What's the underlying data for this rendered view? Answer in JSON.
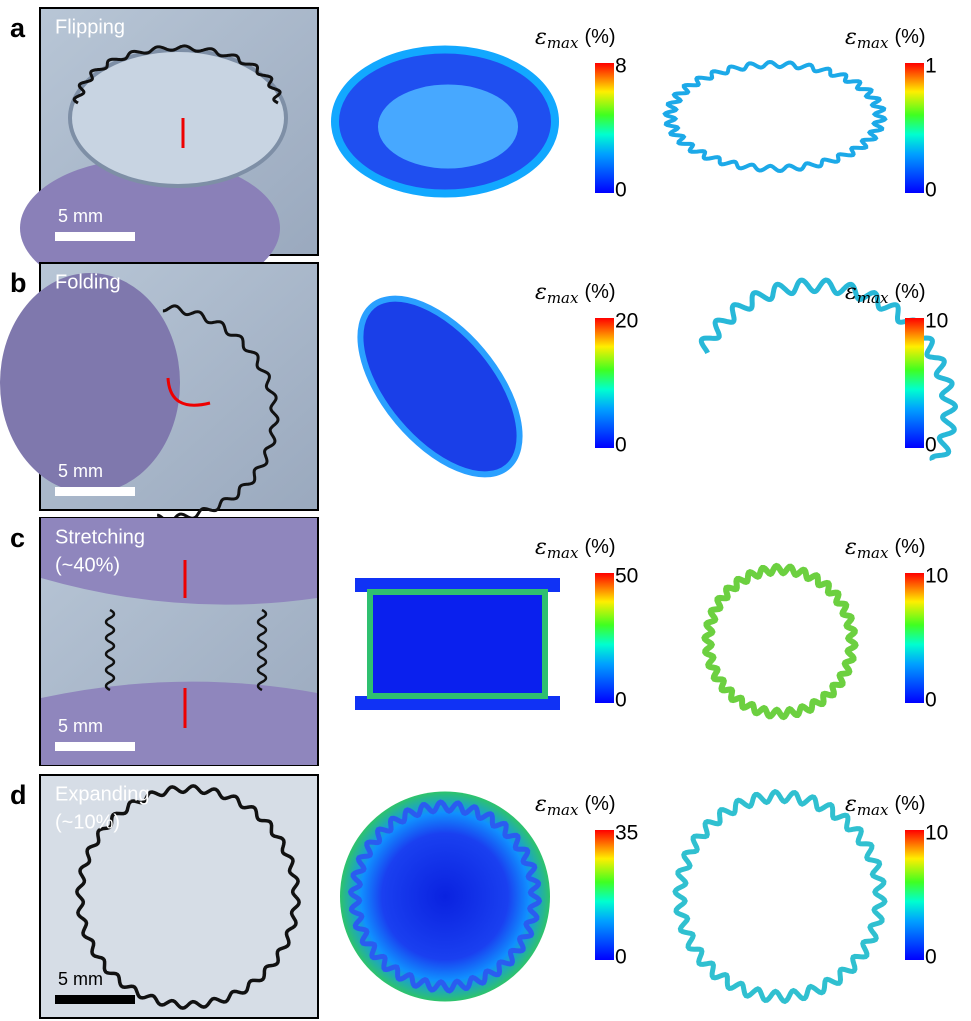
{
  "figure": {
    "colorbar_title": {
      "symbol": "ε",
      "subscript": "max",
      "unit": "(%)"
    },
    "panels": [
      {
        "label": "a",
        "caption": [
          "Flipping"
        ],
        "scale_bar": "5 mm",
        "colorbars": [
          {
            "max": 8,
            "min": 0
          },
          {
            "max": 1,
            "min": 0
          }
        ]
      },
      {
        "label": "b",
        "caption": [
          "Folding"
        ],
        "scale_bar": "5 mm",
        "colorbars": [
          {
            "max": 20,
            "min": 0
          },
          {
            "max": 10,
            "min": 0
          }
        ]
      },
      {
        "label": "c",
        "caption": [
          "Stretching",
          "(~40%)"
        ],
        "scale_bar": "5 mm",
        "colorbars": [
          {
            "max": 50,
            "min": 0
          },
          {
            "max": 10,
            "min": 0
          }
        ]
      },
      {
        "label": "d",
        "caption": [
          "Expanding",
          "(~10%)"
        ],
        "scale_bar": "5 mm",
        "colorbars": [
          {
            "max": 35,
            "min": 0
          },
          {
            "max": 10,
            "min": 0
          }
        ]
      }
    ]
  }
}
